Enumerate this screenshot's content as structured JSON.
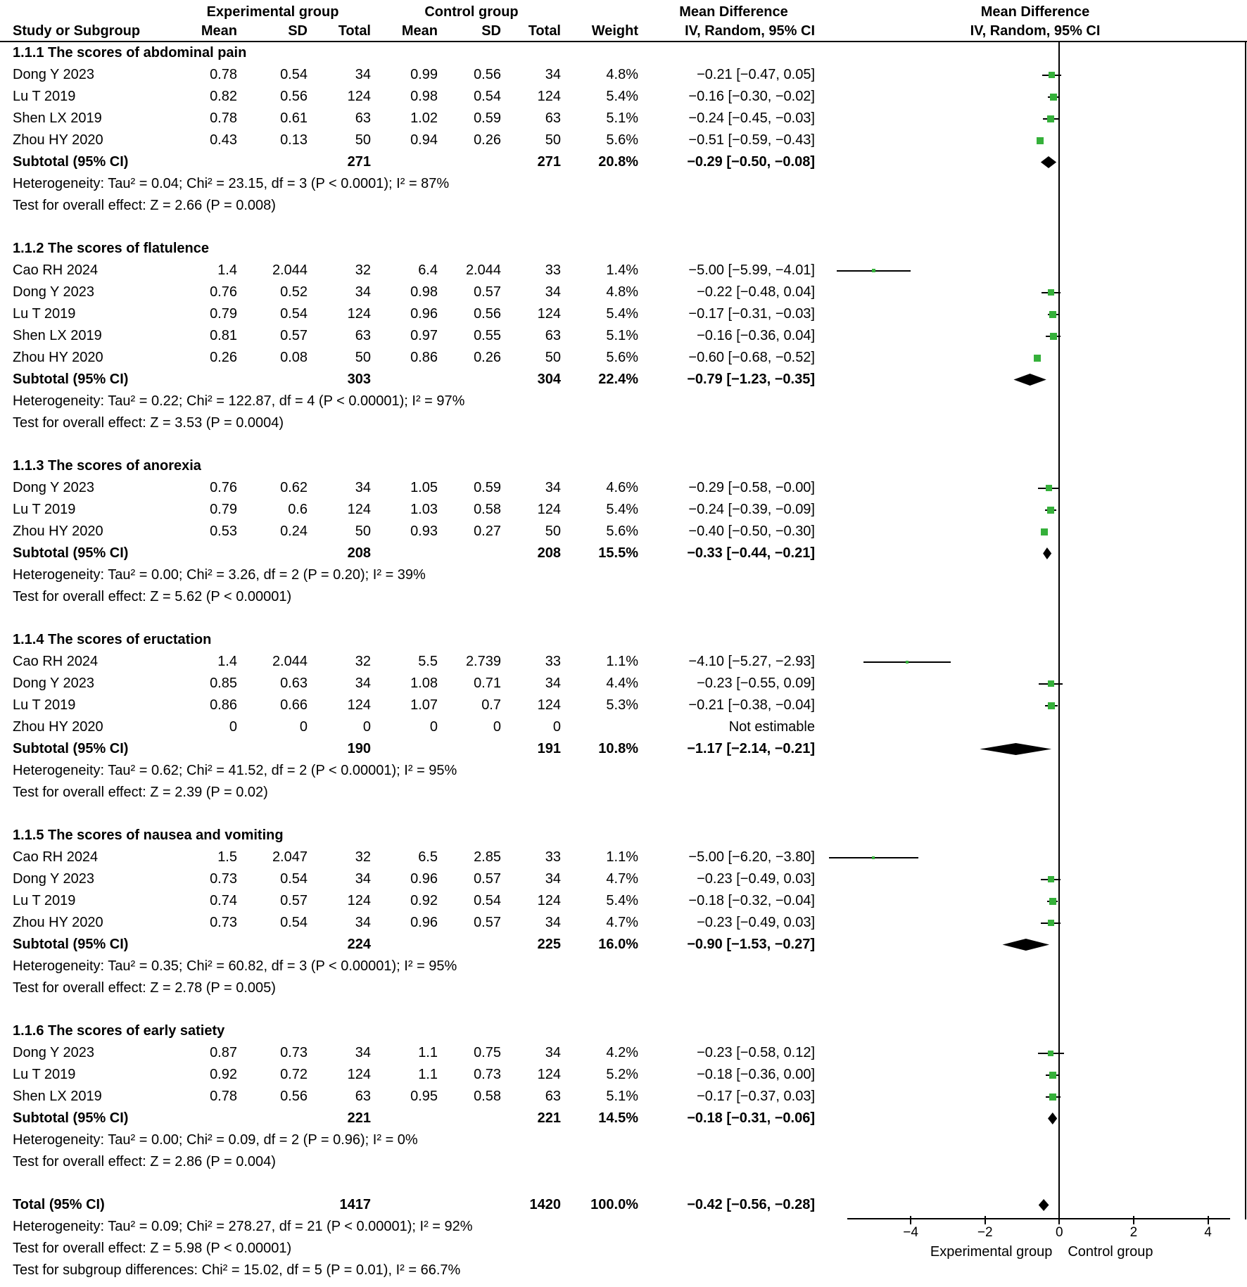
{
  "header": {
    "exp_group": "Experimental group",
    "ctrl_group": "Control group",
    "md": "Mean Difference",
    "col_study": "Study or Subgroup",
    "col_mean": "Mean",
    "col_sd": "SD",
    "col_total": "Total",
    "col_weight": "Weight",
    "col_ci": "IV, Random, 95% CI"
  },
  "colors": {
    "marker_fill": "#35b03a",
    "line": "#000000",
    "text": "#000000",
    "background": "#ffffff"
  },
  "chart_data": {
    "type": "forest",
    "effect_measure": "Mean Difference IV, Random, 95% CI",
    "axis": {
      "xmin": -6.35,
      "xmax": 5.05,
      "line_min": -5.7,
      "line_max": 4.6,
      "ticks": [
        {
          "value": -4,
          "label": "−4"
        },
        {
          "value": -2,
          "label": "−2"
        },
        {
          "value": 0,
          "label": "0"
        },
        {
          "value": 2,
          "label": "2"
        },
        {
          "value": 4,
          "label": "4"
        }
      ],
      "left_label": "Experimental group",
      "right_label": "Control group"
    },
    "subgroups": [
      {
        "title": "1.1.1 The scores of abdominal pain",
        "studies": [
          {
            "name": "Dong Y 2023",
            "exp_mean": "0.78",
            "exp_sd": "0.54",
            "exp_total": "34",
            "ctrl_mean": "0.99",
            "ctrl_sd": "0.56",
            "ctrl_total": "34",
            "weight": "4.8%",
            "md": -0.21,
            "lo": -0.47,
            "hi": 0.05,
            "ci_text": "−0.21 [−0.47, 0.05]"
          },
          {
            "name": "Lu T 2019",
            "exp_mean": "0.82",
            "exp_sd": "0.56",
            "exp_total": "124",
            "ctrl_mean": "0.98",
            "ctrl_sd": "0.54",
            "ctrl_total": "124",
            "weight": "5.4%",
            "md": -0.16,
            "lo": -0.3,
            "hi": -0.02,
            "ci_text": "−0.16 [−0.30, −0.02]"
          },
          {
            "name": "Shen LX 2019",
            "exp_mean": "0.78",
            "exp_sd": "0.61",
            "exp_total": "63",
            "ctrl_mean": "1.02",
            "ctrl_sd": "0.59",
            "ctrl_total": "63",
            "weight": "5.1%",
            "md": -0.24,
            "lo": -0.45,
            "hi": -0.03,
            "ci_text": "−0.24 [−0.45, −0.03]"
          },
          {
            "name": "Zhou HY 2020",
            "exp_mean": "0.43",
            "exp_sd": "0.13",
            "exp_total": "50",
            "ctrl_mean": "0.94",
            "ctrl_sd": "0.26",
            "ctrl_total": "50",
            "weight": "5.6%",
            "md": -0.51,
            "lo": -0.59,
            "hi": -0.43,
            "ci_text": "−0.51 [−0.59, −0.43]"
          }
        ],
        "subtotal": {
          "label": "Subtotal (95% CI)",
          "exp_total": "271",
          "ctrl_total": "271",
          "weight": "20.8%",
          "md": -0.29,
          "lo": -0.5,
          "hi": -0.08,
          "ci_text": "−0.29 [−0.50, −0.08]"
        },
        "heterogeneity": "Heterogeneity: Tau² = 0.04; Chi² = 23.15, df = 3 (P < 0.0001); I² = 87%",
        "test": "Test for overall effect: Z = 2.66 (P = 0.008)"
      },
      {
        "title": "1.1.2 The scores of flatulence",
        "studies": [
          {
            "name": "Cao RH 2024",
            "exp_mean": "1.4",
            "exp_sd": "2.044",
            "exp_total": "32",
            "ctrl_mean": "6.4",
            "ctrl_sd": "2.044",
            "ctrl_total": "33",
            "weight": "1.4%",
            "md": -5.0,
            "lo": -5.99,
            "hi": -4.01,
            "ci_text": "−5.00 [−5.99, −4.01]"
          },
          {
            "name": "Dong Y 2023",
            "exp_mean": "0.76",
            "exp_sd": "0.52",
            "exp_total": "34",
            "ctrl_mean": "0.98",
            "ctrl_sd": "0.57",
            "ctrl_total": "34",
            "weight": "4.8%",
            "md": -0.22,
            "lo": -0.48,
            "hi": 0.04,
            "ci_text": "−0.22 [−0.48, 0.04]"
          },
          {
            "name": "Lu T 2019",
            "exp_mean": "0.79",
            "exp_sd": "0.54",
            "exp_total": "124",
            "ctrl_mean": "0.96",
            "ctrl_sd": "0.56",
            "ctrl_total": "124",
            "weight": "5.4%",
            "md": -0.17,
            "lo": -0.31,
            "hi": -0.03,
            "ci_text": "−0.17 [−0.31, −0.03]"
          },
          {
            "name": "Shen LX 2019",
            "exp_mean": "0.81",
            "exp_sd": "0.57",
            "exp_total": "63",
            "ctrl_mean": "0.97",
            "ctrl_sd": "0.55",
            "ctrl_total": "63",
            "weight": "5.1%",
            "md": -0.16,
            "lo": -0.36,
            "hi": 0.04,
            "ci_text": "−0.16 [−0.36, 0.04]"
          },
          {
            "name": "Zhou HY 2020",
            "exp_mean": "0.26",
            "exp_sd": "0.08",
            "exp_total": "50",
            "ctrl_mean": "0.86",
            "ctrl_sd": "0.26",
            "ctrl_total": "50",
            "weight": "5.6%",
            "md": -0.6,
            "lo": -0.68,
            "hi": -0.52,
            "ci_text": "−0.60 [−0.68, −0.52]"
          }
        ],
        "subtotal": {
          "label": "Subtotal (95% CI)",
          "exp_total": "303",
          "ctrl_total": "304",
          "weight": "22.4%",
          "md": -0.79,
          "lo": -1.23,
          "hi": -0.35,
          "ci_text": "−0.79 [−1.23, −0.35]"
        },
        "heterogeneity": "Heterogeneity: Tau² = 0.22; Chi² = 122.87, df = 4 (P < 0.00001); I² = 97%",
        "test": "Test for overall effect: Z = 3.53 (P = 0.0004)"
      },
      {
        "title": "1.1.3 The scores of anorexia",
        "studies": [
          {
            "name": "Dong Y 2023",
            "exp_mean": "0.76",
            "exp_sd": "0.62",
            "exp_total": "34",
            "ctrl_mean": "1.05",
            "ctrl_sd": "0.59",
            "ctrl_total": "34",
            "weight": "4.6%",
            "md": -0.29,
            "lo": -0.58,
            "hi": 0.0,
            "ci_text": "−0.29 [−0.58, −0.00]"
          },
          {
            "name": "Lu T 2019",
            "exp_mean": "0.79",
            "exp_sd": "0.6",
            "exp_total": "124",
            "ctrl_mean": "1.03",
            "ctrl_sd": "0.58",
            "ctrl_total": "124",
            "weight": "5.4%",
            "md": -0.24,
            "lo": -0.39,
            "hi": -0.09,
            "ci_text": "−0.24 [−0.39, −0.09]"
          },
          {
            "name": "Zhou HY 2020",
            "exp_mean": "0.53",
            "exp_sd": "0.24",
            "exp_total": "50",
            "ctrl_mean": "0.93",
            "ctrl_sd": "0.27",
            "ctrl_total": "50",
            "weight": "5.6%",
            "md": -0.4,
            "lo": -0.5,
            "hi": -0.3,
            "ci_text": "−0.40 [−0.50, −0.30]"
          }
        ],
        "subtotal": {
          "label": "Subtotal (95% CI)",
          "exp_total": "208",
          "ctrl_total": "208",
          "weight": "15.5%",
          "md": -0.33,
          "lo": -0.44,
          "hi": -0.21,
          "ci_text": "−0.33 [−0.44, −0.21]"
        },
        "heterogeneity": "Heterogeneity: Tau² = 0.00; Chi² = 3.26, df = 2 (P = 0.20); I² = 39%",
        "test": "Test for overall effect: Z = 5.62 (P < 0.00001)"
      },
      {
        "title": "1.1.4 The scores of eructation",
        "studies": [
          {
            "name": "Cao RH 2024",
            "exp_mean": "1.4",
            "exp_sd": "2.044",
            "exp_total": "32",
            "ctrl_mean": "5.5",
            "ctrl_sd": "2.739",
            "ctrl_total": "33",
            "weight": "1.1%",
            "md": -4.1,
            "lo": -5.27,
            "hi": -2.93,
            "ci_text": "−4.10 [−5.27, −2.93]"
          },
          {
            "name": "Dong Y 2023",
            "exp_mean": "0.85",
            "exp_sd": "0.63",
            "exp_total": "34",
            "ctrl_mean": "1.08",
            "ctrl_sd": "0.71",
            "ctrl_total": "34",
            "weight": "4.4%",
            "md": -0.23,
            "lo": -0.55,
            "hi": 0.09,
            "ci_text": "−0.23 [−0.55, 0.09]"
          },
          {
            "name": "Lu T 2019",
            "exp_mean": "0.86",
            "exp_sd": "0.66",
            "exp_total": "124",
            "ctrl_mean": "1.07",
            "ctrl_sd": "0.7",
            "ctrl_total": "124",
            "weight": "5.3%",
            "md": -0.21,
            "lo": -0.38,
            "hi": -0.04,
            "ci_text": "−0.21 [−0.38, −0.04]"
          },
          {
            "name": "Zhou HY 2020",
            "exp_mean": "0",
            "exp_sd": "0",
            "exp_total": "0",
            "ctrl_mean": "0",
            "ctrl_sd": "0",
            "ctrl_total": "0",
            "weight": "",
            "md": null,
            "lo": null,
            "hi": null,
            "ci_text": "Not estimable"
          }
        ],
        "subtotal": {
          "label": "Subtotal (95% CI)",
          "exp_total": "190",
          "ctrl_total": "191",
          "weight": "10.8%",
          "md": -1.17,
          "lo": -2.14,
          "hi": -0.21,
          "ci_text": "−1.17 [−2.14, −0.21]"
        },
        "heterogeneity": "Heterogeneity: Tau² = 0.62; Chi² = 41.52, df = 2 (P < 0.00001); I² = 95%",
        "test": "Test for overall effect: Z = 2.39 (P = 0.02)"
      },
      {
        "title": "1.1.5 The scores of nausea and vomiting",
        "studies": [
          {
            "name": "Cao RH 2024",
            "exp_mean": "1.5",
            "exp_sd": "2.047",
            "exp_total": "32",
            "ctrl_mean": "6.5",
            "ctrl_sd": "2.85",
            "ctrl_total": "33",
            "weight": "1.1%",
            "md": -5.0,
            "lo": -6.2,
            "hi": -3.8,
            "ci_text": "−5.00 [−6.20, −3.80]"
          },
          {
            "name": "Dong Y 2023",
            "exp_mean": "0.73",
            "exp_sd": "0.54",
            "exp_total": "34",
            "ctrl_mean": "0.96",
            "ctrl_sd": "0.57",
            "ctrl_total": "34",
            "weight": "4.7%",
            "md": -0.23,
            "lo": -0.49,
            "hi": 0.03,
            "ci_text": "−0.23 [−0.49, 0.03]"
          },
          {
            "name": "Lu T 2019",
            "exp_mean": "0.74",
            "exp_sd": "0.57",
            "exp_total": "124",
            "ctrl_mean": "0.92",
            "ctrl_sd": "0.54",
            "ctrl_total": "124",
            "weight": "5.4%",
            "md": -0.18,
            "lo": -0.32,
            "hi": -0.04,
            "ci_text": "−0.18 [−0.32, −0.04]"
          },
          {
            "name": "Zhou HY 2020",
            "exp_mean": "0.73",
            "exp_sd": "0.54",
            "exp_total": "34",
            "ctrl_mean": "0.96",
            "ctrl_sd": "0.57",
            "ctrl_total": "34",
            "weight": "4.7%",
            "md": -0.23,
            "lo": -0.49,
            "hi": 0.03,
            "ci_text": "−0.23 [−0.49, 0.03]"
          }
        ],
        "subtotal": {
          "label": "Subtotal (95% CI)",
          "exp_total": "224",
          "ctrl_total": "225",
          "weight": "16.0%",
          "md": -0.9,
          "lo": -1.53,
          "hi": -0.27,
          "ci_text": "−0.90 [−1.53, −0.27]"
        },
        "heterogeneity": "Heterogeneity: Tau² = 0.35; Chi² = 60.82, df = 3 (P < 0.00001); I² = 95%",
        "test": "Test for overall effect: Z = 2.78 (P = 0.005)"
      },
      {
        "title": "1.1.6 The scores of early satiety",
        "studies": [
          {
            "name": "Dong Y 2023",
            "exp_mean": "0.87",
            "exp_sd": "0.73",
            "exp_total": "34",
            "ctrl_mean": "1.1",
            "ctrl_sd": "0.75",
            "ctrl_total": "34",
            "weight": "4.2%",
            "md": -0.23,
            "lo": -0.58,
            "hi": 0.12,
            "ci_text": "−0.23 [−0.58, 0.12]"
          },
          {
            "name": "Lu T 2019",
            "exp_mean": "0.92",
            "exp_sd": "0.72",
            "exp_total": "124",
            "ctrl_mean": "1.1",
            "ctrl_sd": "0.73",
            "ctrl_total": "124",
            "weight": "5.2%",
            "md": -0.18,
            "lo": -0.36,
            "hi": 0.0,
            "ci_text": "−0.18 [−0.36, 0.00]"
          },
          {
            "name": "Shen LX 2019",
            "exp_mean": "0.78",
            "exp_sd": "0.56",
            "exp_total": "63",
            "ctrl_mean": "0.95",
            "ctrl_sd": "0.58",
            "ctrl_total": "63",
            "weight": "5.1%",
            "md": -0.17,
            "lo": -0.37,
            "hi": 0.03,
            "ci_text": "−0.17 [−0.37, 0.03]"
          }
        ],
        "subtotal": {
          "label": "Subtotal (95% CI)",
          "exp_total": "221",
          "ctrl_total": "221",
          "weight": "14.5%",
          "md": -0.18,
          "lo": -0.31,
          "hi": -0.06,
          "ci_text": "−0.18 [−0.31, −0.06]"
        },
        "heterogeneity": "Heterogeneity: Tau² = 0.00; Chi² = 0.09, df = 2 (P = 0.96); I² = 0%",
        "test": "Test for overall effect: Z = 2.86 (P = 0.004)"
      }
    ],
    "total": {
      "label": "Total (95% CI)",
      "exp_total": "1417",
      "ctrl_total": "1420",
      "weight": "100.0%",
      "md": -0.42,
      "lo": -0.56,
      "hi": -0.28,
      "ci_text": "−0.42 [−0.56, −0.28]"
    },
    "total_heterogeneity": "Heterogeneity: Tau² = 0.09; Chi² = 278.27, df = 21 (P < 0.00001); I² = 92%",
    "total_test": "Test for overall effect: Z = 5.98 (P < 0.00001)",
    "subgroup_diff_test": "Test for subgroup differences: Chi² = 15.02, df = 5 (P = 0.01), I² = 66.7%"
  }
}
